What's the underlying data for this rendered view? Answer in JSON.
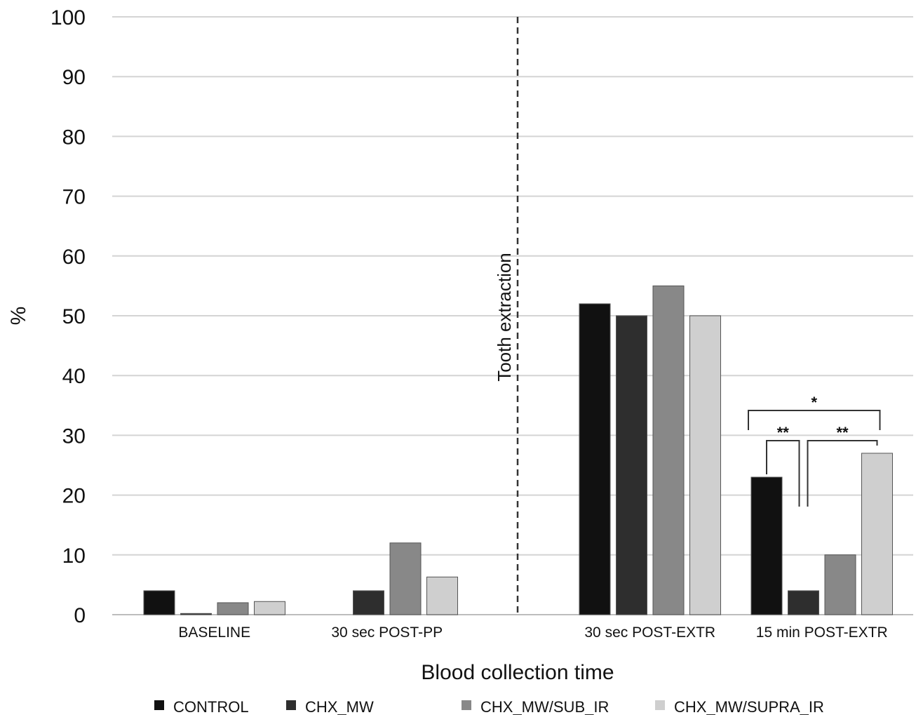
{
  "chart_data": {
    "type": "bar",
    "categories": [
      "BASELINE",
      "30 sec POST-PP",
      "30 sec POST-EXTR",
      "15 min POST-EXTR"
    ],
    "series": [
      {
        "name": "CONTROL",
        "color": "#111111",
        "values": [
          4,
          0,
          52,
          23
        ]
      },
      {
        "name": "CHX_MW",
        "color": "#2e2e2e",
        "values": [
          0.2,
          4,
          50,
          4
        ]
      },
      {
        "name": "CHX_MW/SUB_IR",
        "color": "#888888",
        "values": [
          2,
          12,
          55,
          10
        ]
      },
      {
        "name": "CHX_MW/SUPRA_IR",
        "color": "#cfcfcf",
        "values": [
          2.2,
          6.3,
          50,
          27
        ]
      }
    ],
    "xlabel": "Blood collection time",
    "ylabel": "%",
    "ylim": [
      0,
      100
    ],
    "yticks": [
      0,
      10,
      20,
      30,
      40,
      50,
      60,
      70,
      80,
      90,
      100
    ],
    "grid": true,
    "legend_position": "bottom",
    "annotations": {
      "divider_label": "Tooth extraction",
      "significance": [
        {
          "category": "15 min POST-EXTR",
          "from_series": "CONTROL",
          "to_series": "CHX_MW/SUPRA_IR",
          "label": "*"
        },
        {
          "category": "15 min POST-EXTR",
          "from_series": "CONTROL",
          "to_series": "CHX_MW",
          "label": "**"
        },
        {
          "category": "15 min POST-EXTR",
          "from_series": "CHX_MW",
          "to_series": "CHX_MW/SUPRA_IR",
          "label": "**"
        }
      ]
    }
  }
}
